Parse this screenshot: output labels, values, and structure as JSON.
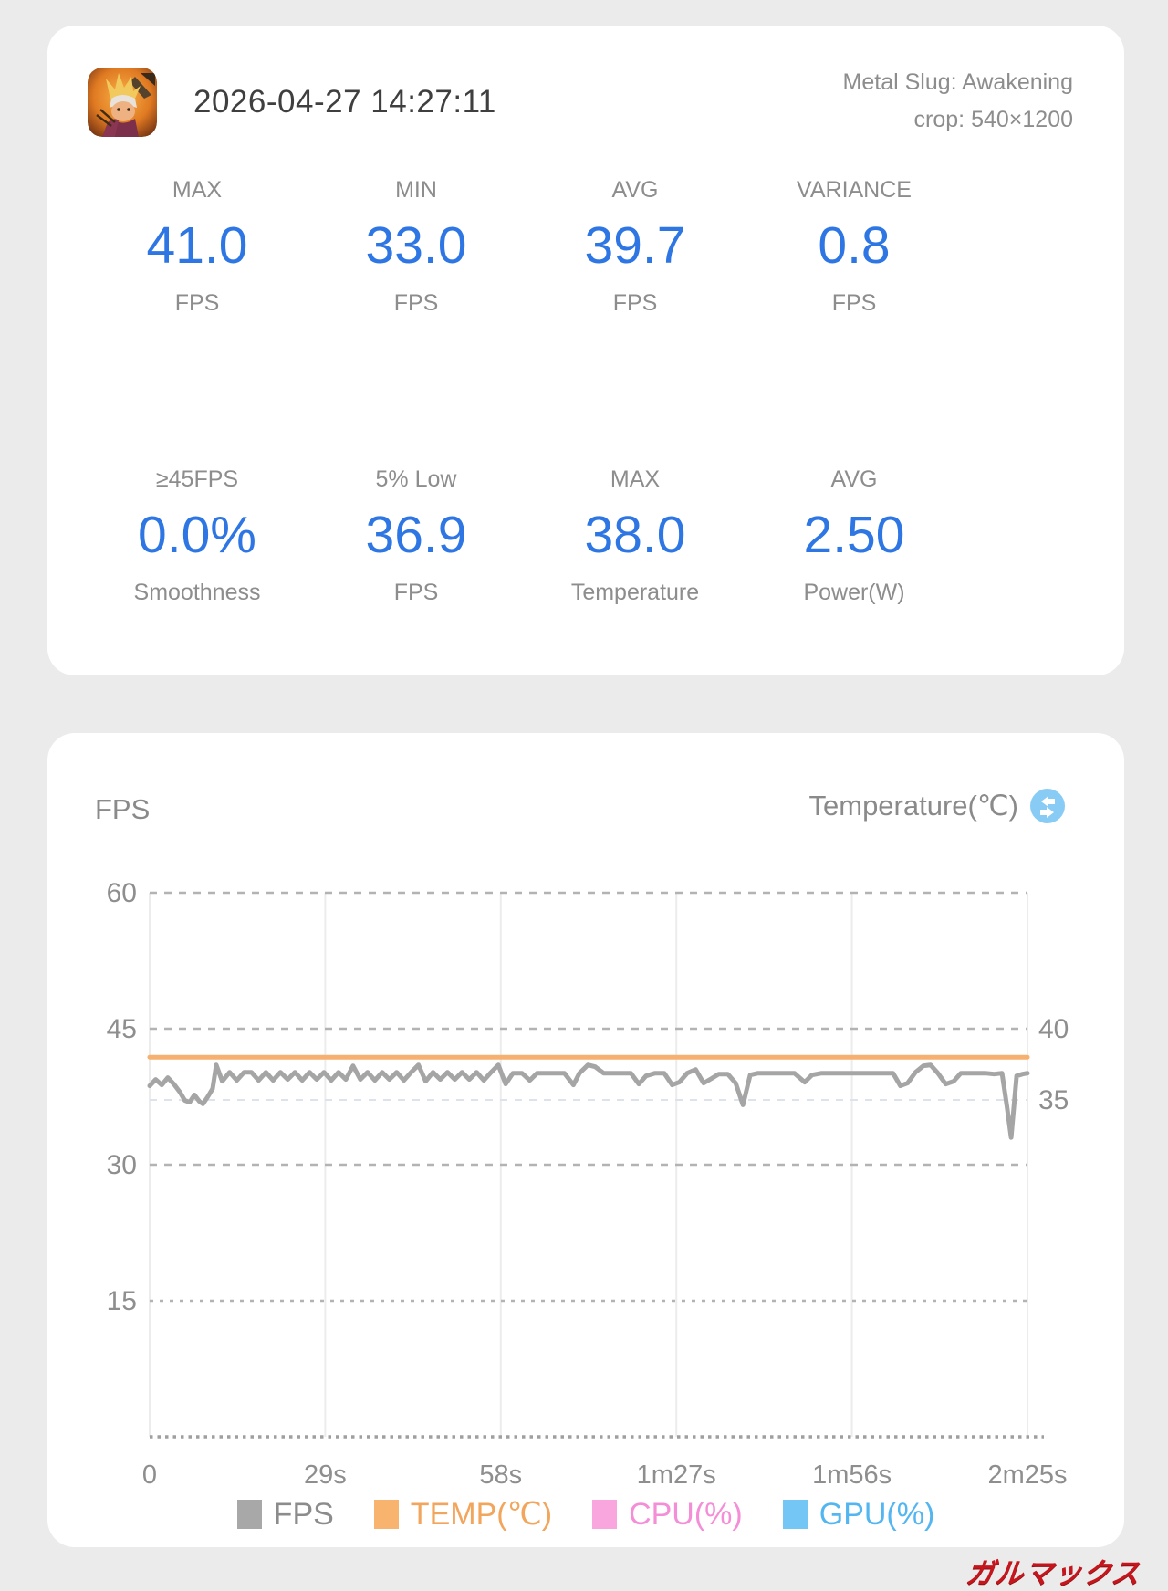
{
  "page": {
    "background": "#ebebeb",
    "watermark": "ガルマックス",
    "watermark_color": "#c5161d"
  },
  "summary_card": {
    "app_icon": "metal-slug-awakening-app-icon",
    "datetime": "2026-04-27 14:27:11",
    "app_name": "Metal Slug: Awakening",
    "crop_info": "crop: 540×1200",
    "value_color": "#2d76e3",
    "stats_row1": [
      {
        "label": "MAX",
        "value": "41.0",
        "unit": "FPS"
      },
      {
        "label": "MIN",
        "value": "33.0",
        "unit": "FPS"
      },
      {
        "label": "AVG",
        "value": "39.7",
        "unit": "FPS"
      },
      {
        "label": "VARIANCE",
        "value": "0.8",
        "unit": "FPS"
      }
    ],
    "stats_row2": [
      {
        "label": "≥45FPS",
        "value": "0.0%",
        "unit": "Smoothness"
      },
      {
        "label": "5% Low",
        "value": "36.9",
        "unit": "FPS"
      },
      {
        "label": "MAX",
        "value": "38.0",
        "unit": "Temperature"
      },
      {
        "label": "AVG",
        "value": "2.50",
        "unit": "Power(W)"
      }
    ]
  },
  "chart_card": {
    "left_axis_title": "FPS",
    "right_axis_title": "Temperature(℃)",
    "swap_icon": "swap-axis-icon",
    "swap_icon_color": "#88ccf5"
  },
  "chart_data": {
    "type": "line",
    "title": "",
    "grid": true,
    "x_axis": {
      "tick_labels": [
        "0",
        "29s",
        "58s",
        "1m27s",
        "1m56s",
        "2m25s"
      ],
      "tick_seconds": [
        0,
        29,
        58,
        87,
        116,
        145
      ],
      "max_seconds": 145
    },
    "y_axis_left": {
      "label": "FPS",
      "ticks": [
        60,
        45,
        30,
        15
      ],
      "range": [
        0,
        60
      ]
    },
    "y_axis_right": {
      "label": "Temperature(℃)",
      "ticks": [
        40,
        35
      ],
      "note": "40℃ aligns with 45 FPS gridline; 5℃ per 78px"
    },
    "series": [
      {
        "name": "FPS",
        "axis": "left",
        "color": "#a5a5a5",
        "points": [
          [
            0,
            38.7
          ],
          [
            1,
            39.4
          ],
          [
            2,
            38.8
          ],
          [
            3,
            39.6
          ],
          [
            4,
            38.9
          ],
          [
            5,
            38.0
          ],
          [
            5.8,
            37.1
          ],
          [
            6.6,
            36.9
          ],
          [
            7.4,
            37.7
          ],
          [
            8.2,
            37.0
          ],
          [
            8.8,
            36.7
          ],
          [
            9.6,
            37.5
          ],
          [
            10.4,
            38.4
          ],
          [
            11,
            41.0
          ],
          [
            12,
            39.2
          ],
          [
            13.2,
            40.2
          ],
          [
            14.4,
            39.3
          ],
          [
            15.6,
            40.2
          ],
          [
            16.8,
            40.2
          ],
          [
            18,
            39.3
          ],
          [
            19.2,
            40.2
          ],
          [
            20.4,
            39.3
          ],
          [
            21.6,
            40.2
          ],
          [
            22.8,
            39.4
          ],
          [
            24,
            40.2
          ],
          [
            25.2,
            39.3
          ],
          [
            26.4,
            40.2
          ],
          [
            27.6,
            39.4
          ],
          [
            28.8,
            40.2
          ],
          [
            30,
            39.3
          ],
          [
            31.2,
            40.2
          ],
          [
            32.4,
            39.4
          ],
          [
            33.6,
            40.9
          ],
          [
            34.8,
            39.4
          ],
          [
            36,
            40.2
          ],
          [
            37.2,
            39.3
          ],
          [
            38.4,
            40.2
          ],
          [
            39.6,
            39.4
          ],
          [
            40.8,
            40.2
          ],
          [
            42,
            39.3
          ],
          [
            43.2,
            40.2
          ],
          [
            44.4,
            41.0
          ],
          [
            45.6,
            39.2
          ],
          [
            46.8,
            40.2
          ],
          [
            48,
            39.4
          ],
          [
            49.2,
            40.2
          ],
          [
            50.4,
            39.4
          ],
          [
            51.6,
            40.2
          ],
          [
            52.8,
            39.4
          ],
          [
            54,
            40.2
          ],
          [
            55.2,
            39.3
          ],
          [
            56.4,
            40.2
          ],
          [
            57.6,
            41.0
          ],
          [
            58.8,
            38.9
          ],
          [
            60,
            40.1
          ],
          [
            61.5,
            40.1
          ],
          [
            62.8,
            39.3
          ],
          [
            64,
            40.1
          ],
          [
            65.5,
            40.1
          ],
          [
            67,
            40.1
          ],
          [
            68.5,
            40.1
          ],
          [
            70,
            38.8
          ],
          [
            71,
            40.1
          ],
          [
            72.4,
            41.0
          ],
          [
            73.6,
            40.8
          ],
          [
            75,
            40.1
          ],
          [
            76.5,
            40.1
          ],
          [
            78,
            40.1
          ],
          [
            79.5,
            40.1
          ],
          [
            80.8,
            38.9
          ],
          [
            82,
            39.8
          ],
          [
            83.5,
            40.1
          ],
          [
            85,
            40.1
          ],
          [
            86.3,
            38.8
          ],
          [
            87.5,
            39.1
          ],
          [
            88.8,
            40.1
          ],
          [
            90.2,
            40.5
          ],
          [
            91.5,
            39.0
          ],
          [
            92.8,
            39.5
          ],
          [
            94,
            40.0
          ],
          [
            95.5,
            40.0
          ],
          [
            96.8,
            39.0
          ],
          [
            98,
            36.6
          ],
          [
            99.2,
            39.9
          ],
          [
            100.5,
            40.1
          ],
          [
            102.5,
            40.1
          ],
          [
            104.5,
            40.1
          ],
          [
            106.5,
            40.1
          ],
          [
            108.2,
            39.1
          ],
          [
            109.4,
            39.9
          ],
          [
            111,
            40.1
          ],
          [
            113,
            40.1
          ],
          [
            115.5,
            40.1
          ],
          [
            118,
            40.1
          ],
          [
            120.5,
            40.1
          ],
          [
            122.8,
            40.1
          ],
          [
            124,
            38.7
          ],
          [
            125.2,
            39.0
          ],
          [
            126.5,
            40.2
          ],
          [
            127.8,
            40.9
          ],
          [
            129,
            41.0
          ],
          [
            130.2,
            40.1
          ],
          [
            131.5,
            38.9
          ],
          [
            132.8,
            39.2
          ],
          [
            134,
            40.1
          ],
          [
            136,
            40.1
          ],
          [
            138,
            40.1
          ],
          [
            139.5,
            40.0
          ],
          [
            140.8,
            40.1
          ],
          [
            141.6,
            36.5
          ],
          [
            142.3,
            33.0
          ],
          [
            143.2,
            39.8
          ],
          [
            144.2,
            40.0
          ],
          [
            145,
            40.1
          ]
        ]
      },
      {
        "name": "TEMP(℃)",
        "axis": "right",
        "color": "#f6b170",
        "points": [
          [
            0,
            38
          ],
          [
            145,
            38
          ]
        ]
      },
      {
        "name": "CPU(%)",
        "axis": "left",
        "color": "#f8a6dd",
        "points": [],
        "note": "legend only, no visible line"
      },
      {
        "name": "GPU(%)",
        "axis": "left",
        "color": "#74c6f4",
        "points": [],
        "note": "legend only, no visible line"
      }
    ],
    "legend": [
      {
        "label": "FPS",
        "swatch": "#a8a8a8",
        "text_color": "#8c8c8c"
      },
      {
        "label": "TEMP(℃)",
        "swatch": "#f8b36e",
        "text_color": "#f2a55c"
      },
      {
        "label": "CPU(%)",
        "swatch": "#f8a6dd",
        "text_color": "#f48ed6"
      },
      {
        "label": "GPU(%)",
        "swatch": "#74c6f4",
        "text_color": "#54b6f0"
      }
    ],
    "legend_position": "bottom"
  }
}
